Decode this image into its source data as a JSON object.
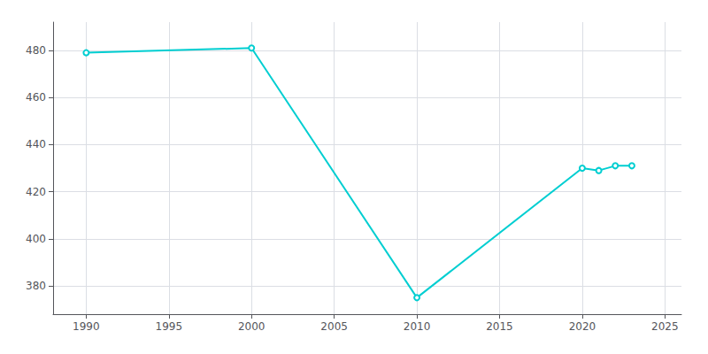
{
  "chart_data": {
    "type": "line",
    "x": [
      1990,
      2000,
      2010,
      2020,
      2021,
      2022,
      2023
    ],
    "values": [
      479,
      481,
      375,
      430,
      429,
      431,
      431
    ],
    "color": "#00CED1",
    "xlim": [
      1988,
      2026
    ],
    "ylim": [
      368,
      492
    ],
    "xticks": [
      1990,
      1995,
      2000,
      2005,
      2010,
      2015,
      2020,
      2025
    ],
    "yticks": [
      380,
      400,
      420,
      440,
      460,
      480
    ],
    "grid": true
  }
}
